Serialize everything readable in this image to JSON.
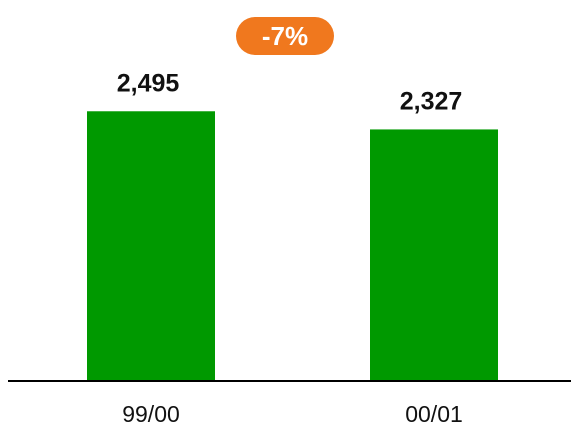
{
  "chart_data": {
    "type": "bar",
    "categories": [
      "99/00",
      "00/01"
    ],
    "values": [
      2495,
      2327
    ],
    "value_labels": [
      "2,495",
      "2,327"
    ],
    "annotation": "-7%",
    "ylim": [
      0,
      2960
    ],
    "grid": false,
    "legend": "none",
    "title": "",
    "xlabel": "",
    "ylabel": ""
  },
  "colors": {
    "bar": "#009900",
    "badge": "#f0781e",
    "axis": "#000000",
    "text": "#111111"
  }
}
